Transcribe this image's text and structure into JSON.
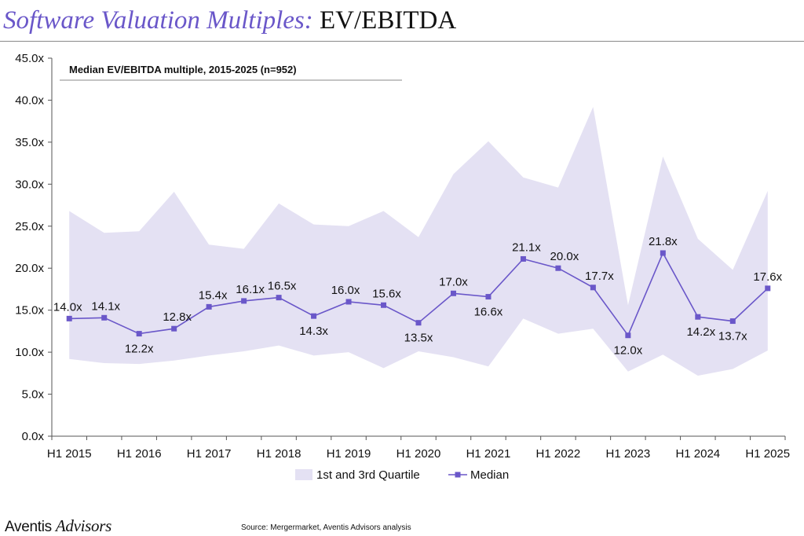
{
  "header": {
    "title_italic": "Software Valuation Multiples:",
    "title_plain": "EV/EBITDA"
  },
  "chart_data": {
    "type": "line",
    "subtitle": "Median EV/EBITDA multiple, 2015-2025 (n=952)",
    "x": [
      "H1 2015",
      "H2 2015",
      "H1 2016",
      "H2 2016",
      "H1 2017",
      "H2 2017",
      "H1 2018",
      "H2 2018",
      "H1 2019",
      "H2 2019",
      "H1 2020",
      "H2 2020",
      "H1 2021",
      "H2 2021",
      "H1 2022",
      "H2 2022",
      "H1 2023",
      "H2 2023",
      "H1 2024",
      "H2 2024",
      "H1 2025"
    ],
    "x_tick_labels": [
      "H1 2015",
      "H1 2016",
      "H1 2017",
      "H1 2018",
      "H1 2019",
      "H1 2020",
      "H1 2021",
      "H1 2022",
      "H1 2023",
      "H1 2024",
      "H1 2025"
    ],
    "y_tick_labels": [
      "0.0x",
      "5.0x",
      "10.0x",
      "15.0x",
      "20.0x",
      "25.0x",
      "30.0x",
      "35.0x",
      "40.0x",
      "45.0x"
    ],
    "ylim": [
      0,
      45
    ],
    "series": [
      {
        "name": "Median",
        "color": "#6a57c9",
        "values": [
          14.0,
          14.1,
          12.2,
          12.8,
          15.4,
          16.1,
          16.5,
          14.3,
          16.0,
          15.6,
          13.5,
          17.0,
          16.6,
          21.1,
          20.0,
          17.7,
          12.0,
          21.8,
          14.2,
          13.7,
          17.6
        ],
        "labels": [
          "14.0x",
          "14.1x",
          "12.2x",
          "12.8x",
          "15.4x",
          "16.1x",
          "16.5x",
          "14.3x",
          "16.0x",
          "15.6x",
          "13.5x",
          "17.0x",
          "16.6x",
          "21.1x",
          "20.0x",
          "17.7x",
          "12.0x",
          "21.8x",
          "14.2x",
          "13.7x",
          "17.6x"
        ]
      },
      {
        "name": "1st and 3rd Quartile",
        "type": "area-band",
        "color": "#e4e1f3",
        "lower": [
          9.2,
          8.7,
          8.6,
          9.0,
          9.6,
          10.1,
          10.8,
          9.6,
          10.0,
          8.1,
          10.1,
          9.4,
          8.3,
          14.0,
          12.2,
          12.8,
          7.7,
          9.7,
          7.2,
          8.0,
          10.2
        ],
        "upper": [
          26.8,
          24.2,
          24.4,
          29.1,
          22.8,
          22.3,
          27.7,
          25.2,
          25.0,
          26.8,
          23.7,
          31.2,
          35.1,
          30.8,
          29.6,
          39.2,
          15.6,
          33.3,
          23.5,
          19.8,
          29.2
        ]
      }
    ],
    "legend": [
      "1st and 3rd Quartile",
      "Median"
    ],
    "legend_position": "bottom-center"
  },
  "footer": {
    "brand_main": "Aventis",
    "brand_sub": "Advisors",
    "source": "Source: Mergermarket, Aventis Advisors analysis"
  }
}
